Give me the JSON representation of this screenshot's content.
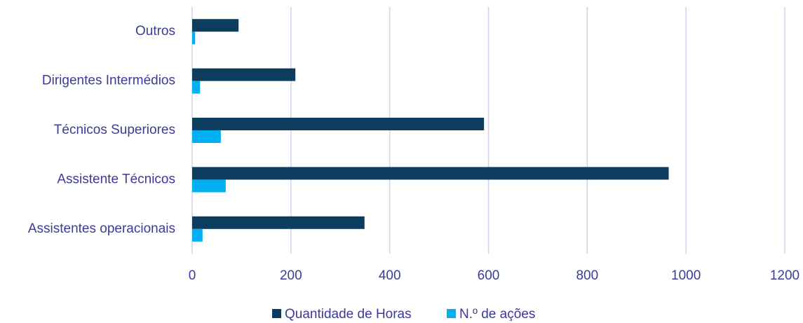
{
  "chart_data": {
    "type": "bar",
    "orientation": "horizontal",
    "categories": [
      "Outros",
      "Dirigentes Intermédios",
      "Técnicos Superiores",
      "Assistente Técnicos",
      "Assistentes operacionais"
    ],
    "series": [
      {
        "name": "Quantidade de Horas",
        "color": "#0c3c5e",
        "values": [
          94,
          209,
          591,
          965,
          349
        ]
      },
      {
        "name": "N.º de ações",
        "color": "#00b0f0",
        "values": [
          6,
          16,
          58,
          68,
          21
        ]
      }
    ],
    "xlim": [
      0,
      1200
    ],
    "xticks": [
      0,
      200,
      400,
      600,
      800,
      1000,
      1200
    ],
    "grid": true,
    "legend": "bottom"
  }
}
